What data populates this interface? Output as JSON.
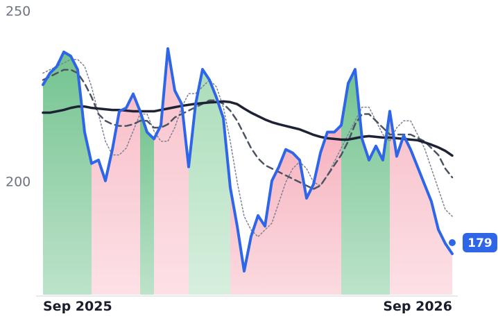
{
  "chart_data": {
    "type": "line",
    "categories": [
      "Sep 2025",
      null,
      null,
      null,
      null,
      null,
      null,
      null,
      null,
      null,
      null,
      null,
      null,
      null,
      null,
      null,
      null,
      null,
      null,
      null,
      null,
      null,
      null,
      null,
      null,
      null,
      null,
      null,
      null,
      null,
      null,
      null,
      null,
      null,
      null,
      null,
      null,
      null,
      null,
      null,
      null,
      null,
      null,
      null,
      null,
      null,
      null,
      null,
      null,
      null,
      null,
      null,
      null,
      null,
      null,
      null,
      null,
      null,
      null,
      "Sep 2026"
    ],
    "series": [
      {
        "color": "#2f66e8",
        "values": [
          228.6,
          232,
          234,
          238.2,
          237,
          233,
          214.7,
          205.5,
          206.5,
          200.4,
          209.6,
          220.8,
          221.8,
          225.9,
          220.8,
          214.7,
          212.7,
          216.7,
          239.2,
          226.9,
          222.9,
          204.5,
          222.9,
          233.1,
          230,
          224.9,
          218.8,
          198.4,
          187.1,
          173.9,
          184.1,
          190.2,
          187.1,
          200.4,
          204.5,
          209.6,
          208.6,
          206.5,
          195.3,
          199.4,
          208.6,
          214.7,
          214.7,
          216.7,
          229,
          233.1,
          212.7,
          206.5,
          210.6,
          206.5,
          220.8,
          207.6,
          213.7,
          209.6,
          204.5,
          199.4,
          194.3,
          186.1,
          182,
          179
        ]
      },
      {
        "color": "#1e2235",
        "values": [
          220.4,
          220.4,
          220.8,
          221.2,
          221.8,
          222.2,
          222.2,
          221.8,
          221.6,
          221.4,
          221.2,
          221.2,
          221,
          220.8,
          220.8,
          220.8,
          220.8,
          221.2,
          221.6,
          222,
          222.4,
          222.7,
          223,
          223.2,
          223.4,
          223.5,
          223.7,
          223.5,
          222.9,
          221.6,
          220.4,
          219.4,
          218.4,
          217.6,
          217,
          216.5,
          216,
          215.5,
          214.7,
          213.9,
          213.3,
          212.9,
          212.7,
          212.5,
          212.5,
          212.9,
          213.3,
          213.5,
          213.3,
          213.1,
          213.1,
          212.9,
          212.7,
          212.5,
          212.3,
          211.7,
          211,
          210.2,
          209.2,
          207.8
        ]
      },
      {
        "color": "#4b5363",
        "dash": "9 6",
        "values": [
          230,
          231,
          232,
          233,
          233,
          232,
          229,
          225,
          220,
          218,
          217,
          216.5,
          216.5,
          217,
          218,
          218,
          216,
          216,
          217,
          219,
          220,
          221,
          222,
          223,
          224,
          224,
          223,
          221,
          218,
          214,
          210,
          207,
          205,
          204,
          203,
          202,
          201,
          200,
          199,
          198,
          199,
          202,
          205,
          208,
          212,
          217,
          220,
          220,
          218,
          216,
          214,
          214,
          214,
          214,
          213,
          212,
          210,
          208,
          204,
          201.4
        ]
      },
      {
        "color": "#7a8194",
        "dash": "2 3",
        "values": [
          232,
          233,
          234,
          235,
          236,
          236,
          234,
          228,
          220,
          212,
          208,
          208,
          210,
          215,
          220,
          220,
          215,
          212,
          212,
          216,
          222,
          226,
          226,
          228,
          230,
          228,
          222,
          212,
          200,
          190,
          186,
          184,
          186,
          188,
          194,
          200,
          204,
          206,
          204,
          200,
          199,
          202,
          206,
          210,
          214,
          218,
          222,
          222,
          218,
          214,
          212,
          216,
          218,
          218,
          214,
          210,
          204,
          198,
          192,
          190
        ]
      }
    ],
    "bands": [
      {
        "start": 0,
        "end": 7,
        "color": "#6cc08a"
      },
      {
        "start": 7,
        "end": 14,
        "color": "#f8bcc7"
      },
      {
        "start": 14,
        "end": 16,
        "color": "#6cc08a"
      },
      {
        "start": 16,
        "end": 21,
        "color": "#f8bcc7"
      },
      {
        "start": 21,
        "end": 27,
        "color": "#a6dbb6"
      },
      {
        "start": 27,
        "end": 43,
        "color": "#f6aebb"
      },
      {
        "start": 43,
        "end": 50,
        "color": "#6cc08a"
      },
      {
        "start": 50,
        "end": 59,
        "color": "#f8bcc7"
      }
    ],
    "ylim": [
      167,
      250
    ],
    "yticks": [
      200,
      250
    ]
  }
}
